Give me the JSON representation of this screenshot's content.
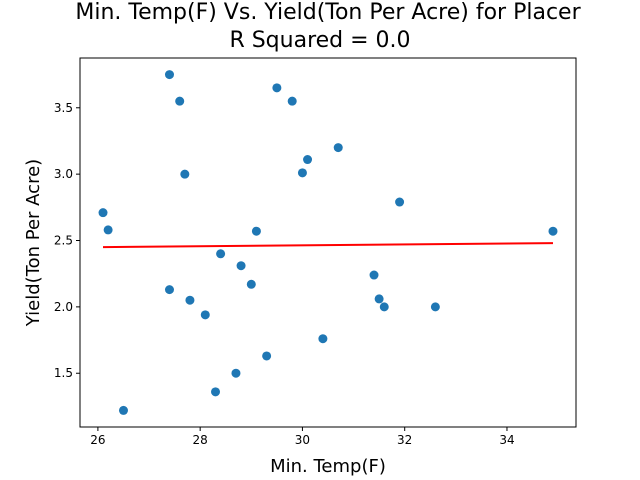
{
  "chart_data": {
    "type": "scatter",
    "title": "Min. Temp(F) Vs. Yield(Ton Per Acre) for Placer",
    "subtitle": "R Squared =  0.0",
    "xlabel": "Min. Temp(F)",
    "ylabel": "Yield(Ton Per Acre)",
    "xlim": [
      25.65,
      35.35
    ],
    "ylim": [
      1.095,
      3.875
    ],
    "xticks": [
      26,
      28,
      30,
      32,
      34
    ],
    "yticks": [
      1.5,
      2.0,
      2.5,
      3.0,
      3.5
    ],
    "xtick_labels": [
      "26",
      "28",
      "30",
      "32",
      "34"
    ],
    "ytick_labels": [
      "1.5",
      "2.0",
      "2.5",
      "3.0",
      "3.5"
    ],
    "grid": false,
    "points": [
      {
        "x": 26.1,
        "y": 2.71
      },
      {
        "x": 26.2,
        "y": 2.58
      },
      {
        "x": 26.5,
        "y": 1.22
      },
      {
        "x": 27.4,
        "y": 3.75
      },
      {
        "x": 27.4,
        "y": 2.13
      },
      {
        "x": 27.6,
        "y": 3.55
      },
      {
        "x": 27.7,
        "y": 3.0
      },
      {
        "x": 27.8,
        "y": 2.05
      },
      {
        "x": 28.1,
        "y": 1.94
      },
      {
        "x": 28.3,
        "y": 1.36
      },
      {
        "x": 28.4,
        "y": 2.4
      },
      {
        "x": 28.7,
        "y": 1.5
      },
      {
        "x": 28.8,
        "y": 2.31
      },
      {
        "x": 29.0,
        "y": 2.17
      },
      {
        "x": 29.1,
        "y": 2.57
      },
      {
        "x": 29.3,
        "y": 1.63
      },
      {
        "x": 29.5,
        "y": 3.65
      },
      {
        "x": 29.8,
        "y": 3.55
      },
      {
        "x": 30.0,
        "y": 3.01
      },
      {
        "x": 30.1,
        "y": 3.11
      },
      {
        "x": 30.4,
        "y": 1.76
      },
      {
        "x": 30.7,
        "y": 3.2
      },
      {
        "x": 31.4,
        "y": 2.24
      },
      {
        "x": 31.5,
        "y": 2.06
      },
      {
        "x": 31.6,
        "y": 2.0
      },
      {
        "x": 31.9,
        "y": 2.79
      },
      {
        "x": 32.6,
        "y": 2.0
      },
      {
        "x": 34.9,
        "y": 2.57
      }
    ],
    "regression_line": {
      "x": [
        26.1,
        34.9
      ],
      "y": [
        2.45,
        2.48
      ]
    },
    "colors": {
      "points": "#1f77b4",
      "regression": "#ff0000",
      "axes": "#000000"
    }
  }
}
